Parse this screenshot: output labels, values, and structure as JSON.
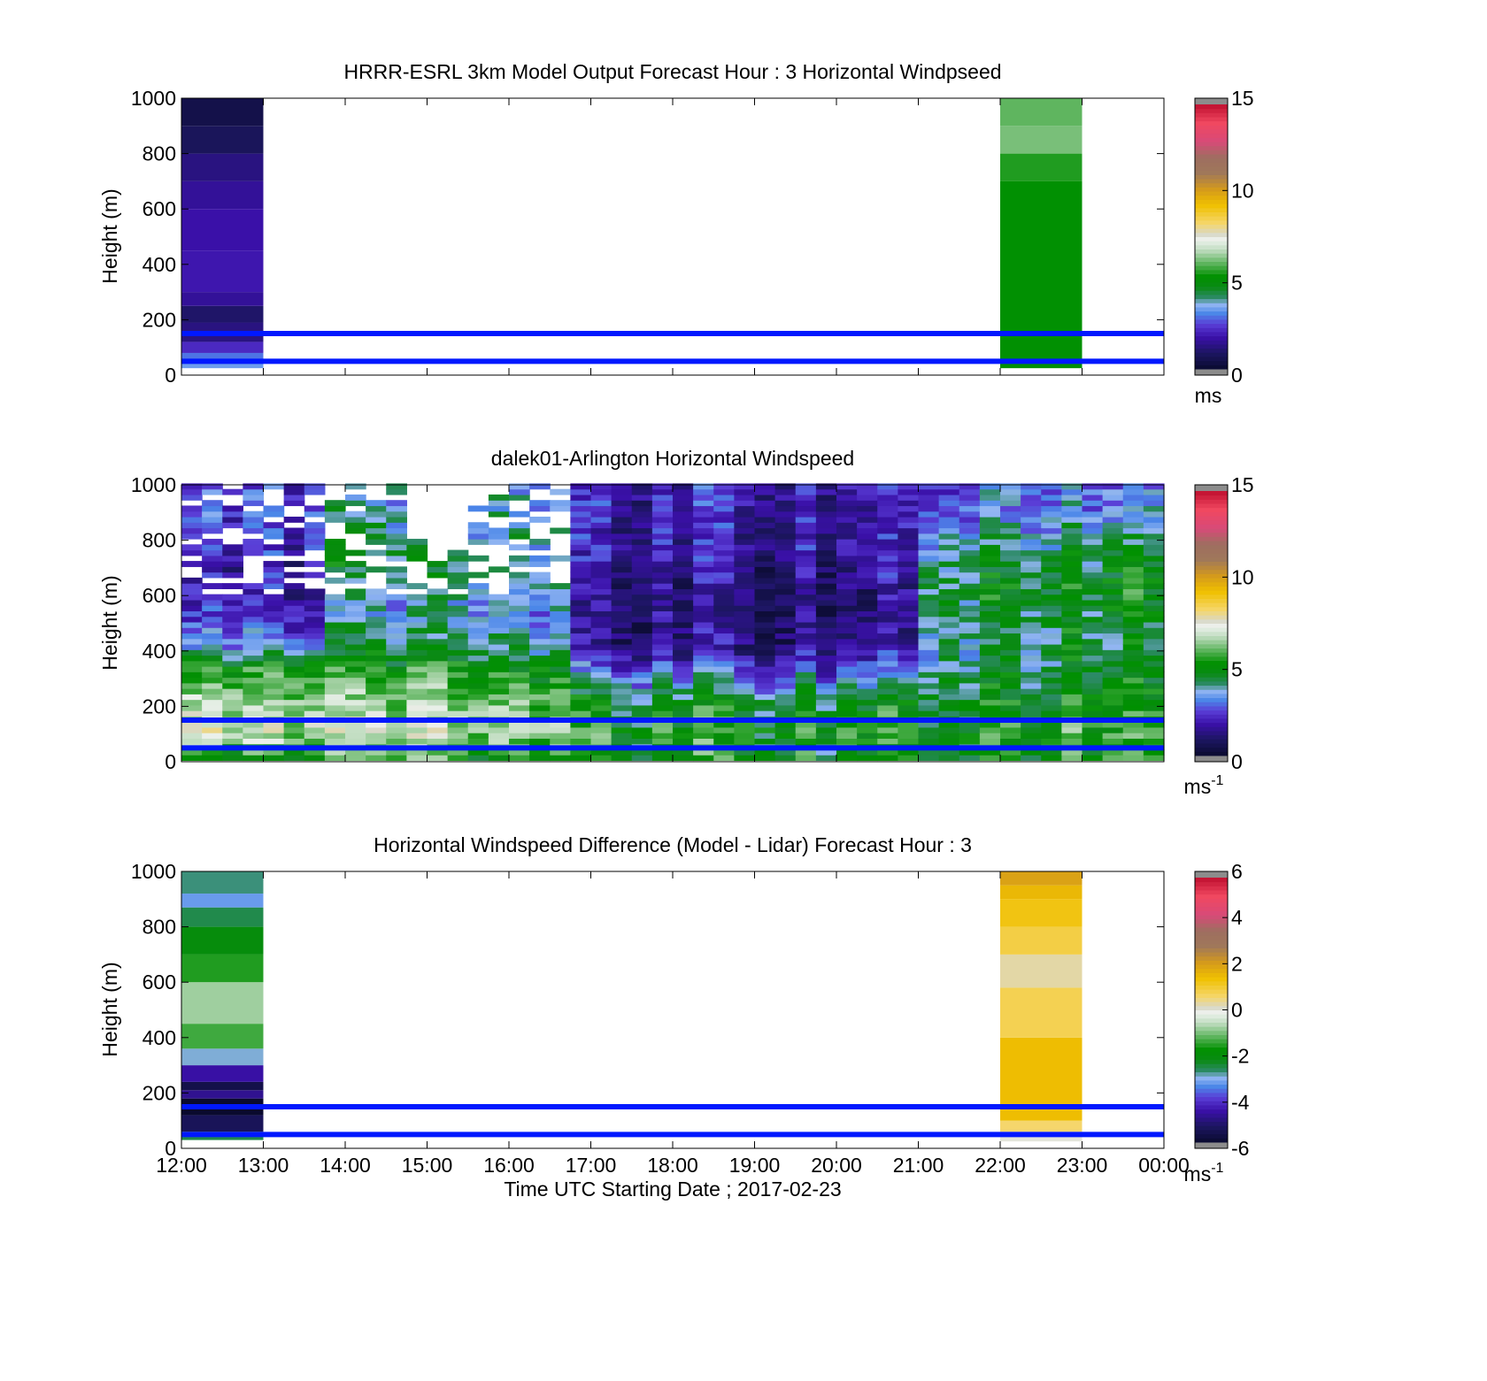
{
  "figure": {
    "xlabel": "Time UTC  Starting Date ; 2017-02-23",
    "x_ticks": [
      "12:00",
      "13:00",
      "14:00",
      "15:00",
      "16:00",
      "17:00",
      "18:00",
      "19:00",
      "20:00",
      "21:00",
      "22:00",
      "23:00",
      "00:00"
    ],
    "ylabel": "Height (m)",
    "y_ticks": [
      "0",
      "200",
      "400",
      "600",
      "800",
      "1000"
    ],
    "overlay_line_color": "#0018ff",
    "overlay_line_heights": [
      150,
      50
    ]
  },
  "chart_data": [
    {
      "type": "heatmap",
      "title": "HRRR-ESRL 3km Model Output   Forecast Hour : 3 Horizontal Windpseed",
      "xlabel": "Time UTC  Starting Date ; 2017-02-23",
      "ylabel": "Height (m)",
      "xlim": [
        "12:00",
        "00:00"
      ],
      "ylim": [
        0,
        1000
      ],
      "colorbar": {
        "ticks": [
          "0",
          "5",
          "10",
          "15"
        ],
        "range": [
          0,
          15
        ],
        "unit": "ms",
        "unit_sup": ""
      },
      "columns": [
        {
          "start": "12:00",
          "end": "13:00",
          "cells": [
            {
              "y0": 25,
              "y1": 45,
              "v": 3.4
            },
            {
              "y0": 45,
              "y1": 80,
              "v": 3.0
            },
            {
              "y0": 80,
              "y1": 120,
              "v": 2.2
            },
            {
              "y0": 120,
              "y1": 190,
              "v": 1.3
            },
            {
              "y0": 190,
              "y1": 250,
              "v": 1.0
            },
            {
              "y0": 250,
              "y1": 300,
              "v": 1.6
            },
            {
              "y0": 300,
              "y1": 450,
              "v": 1.9
            },
            {
              "y0": 450,
              "y1": 600,
              "v": 1.8
            },
            {
              "y0": 600,
              "y1": 700,
              "v": 1.6
            },
            {
              "y0": 700,
              "y1": 800,
              "v": 1.3
            },
            {
              "y0": 800,
              "y1": 900,
              "v": 0.8
            },
            {
              "y0": 900,
              "y1": 1000,
              "v": 0.5
            }
          ]
        },
        {
          "start": "22:00",
          "end": "23:00",
          "cells": [
            {
              "y0": 25,
              "y1": 700,
              "v": 5.2
            },
            {
              "y0": 700,
              "y1": 800,
              "v": 5.5
            },
            {
              "y0": 800,
              "y1": 900,
              "v": 6.2
            },
            {
              "y0": 900,
              "y1": 1000,
              "v": 6.0
            }
          ]
        }
      ],
      "reference_lines_m": [
        150,
        50
      ]
    },
    {
      "type": "heatmap",
      "title": "dalek01-Arlington  Horizontal Windspeed",
      "xlabel": "Time UTC  Starting Date ; 2017-02-23",
      "ylabel": "Height (m)",
      "xlim": [
        "12:00",
        "00:00"
      ],
      "ylim": [
        0,
        1000
      ],
      "colorbar": {
        "ticks": [
          "0",
          "5",
          "10",
          "15"
        ],
        "range": [
          0,
          15
        ],
        "unit": "ms",
        "unit_sup": "-1"
      },
      "time_bin_minutes": 15,
      "height_bin_m": 20,
      "data_top_m": [
        1000,
        1000,
        1000,
        1000,
        1000,
        1000,
        1000,
        980,
        1000,
        1000,
        1000,
        880,
        740,
        760,
        920,
        980,
        1000,
        1000,
        1000,
        1000,
        1000,
        1000,
        1000,
        1000,
        1000,
        1000,
        1000,
        1000,
        1000,
        1000,
        1000,
        1000,
        1000,
        1000,
        1000,
        1000,
        1000,
        1000,
        1000,
        1000,
        1000,
        1000,
        1000,
        1000,
        1000,
        1000,
        1000,
        1000
      ],
      "regime_profiles": {
        "early": {
          "heights": [
            0,
            100,
            200,
            300,
            400,
            500,
            600,
            700,
            800,
            900,
            1000
          ],
          "values": [
            5.2,
            7.0,
            6.6,
            5.8,
            3.6,
            2.4,
            1.9,
            2.0,
            2.4,
            2.6,
            2.5
          ]
        },
        "midday": {
          "heights": [
            0,
            100,
            200,
            300,
            400,
            500,
            600,
            700,
            800,
            900,
            1000
          ],
          "values": [
            5.3,
            6.6,
            6.2,
            5.4,
            4.2,
            3.4,
            3.6,
            4.2,
            4.0,
            3.6,
            3.6
          ]
        },
        "afternoon": {
          "heights": [
            0,
            100,
            200,
            300,
            400,
            500,
            600,
            700,
            800,
            900,
            1000
          ],
          "values": [
            5.0,
            5.4,
            4.8,
            3.2,
            1.6,
            1.2,
            1.3,
            1.6,
            1.8,
            2.0,
            2.0
          ]
        },
        "evening": {
          "heights": [
            0,
            100,
            200,
            300,
            400,
            500,
            600,
            700,
            800,
            900,
            1000
          ],
          "values": [
            5.2,
            5.3,
            5.0,
            4.6,
            4.2,
            4.4,
            4.8,
            4.4,
            3.8,
            3.2,
            2.8
          ]
        }
      },
      "regime_start_times": {
        "early": "12:00",
        "midday": "13:45",
        "afternoon": "16:45",
        "evening": "21:00"
      },
      "reference_lines_m": [
        150,
        50
      ]
    },
    {
      "type": "heatmap",
      "title": "Horizontal Windspeed Difference (Model - Lidar) Forecast Hour : 3",
      "xlabel": "Time UTC  Starting Date ; 2017-02-23",
      "ylabel": "Height (m)",
      "xlim": [
        "12:00",
        "00:00"
      ],
      "ylim": [
        0,
        1000
      ],
      "colorbar": {
        "ticks": [
          "-6",
          "-4",
          "-2",
          "0",
          "2",
          "4",
          "6"
        ],
        "range": [
          -6,
          6
        ],
        "unit": "ms",
        "unit_sup": "-1"
      },
      "columns": [
        {
          "start": "12:00",
          "end": "13:00",
          "cells": [
            {
              "y0": 30,
              "y1": 60,
              "v": -2.6
            },
            {
              "y0": 60,
              "y1": 120,
              "v": -5.4
            },
            {
              "y0": 120,
              "y1": 180,
              "v": -6.0
            },
            {
              "y0": 180,
              "y1": 210,
              "v": -4.8
            },
            {
              "y0": 210,
              "y1": 240,
              "v": -5.6
            },
            {
              "y0": 240,
              "y1": 300,
              "v": -4.6
            },
            {
              "y0": 300,
              "y1": 360,
              "v": -3.0
            },
            {
              "y0": 360,
              "y1": 450,
              "v": -1.4
            },
            {
              "y0": 450,
              "y1": 600,
              "v": -0.8
            },
            {
              "y0": 600,
              "y1": 700,
              "v": -1.6
            },
            {
              "y0": 700,
              "y1": 800,
              "v": -2.1
            },
            {
              "y0": 800,
              "y1": 870,
              "v": -2.6
            },
            {
              "y0": 870,
              "y1": 920,
              "v": -3.3
            },
            {
              "y0": 920,
              "y1": 1000,
              "v": -2.8
            }
          ]
        },
        {
          "start": "22:00",
          "end": "23:00",
          "cells": [
            {
              "y0": 25,
              "y1": 60,
              "v": 0.0
            },
            {
              "y0": 60,
              "y1": 100,
              "v": 0.6
            },
            {
              "y0": 100,
              "y1": 400,
              "v": 1.5
            },
            {
              "y0": 400,
              "y1": 580,
              "v": 0.8
            },
            {
              "y0": 580,
              "y1": 700,
              "v": 0.3
            },
            {
              "y0": 700,
              "y1": 800,
              "v": 0.9
            },
            {
              "y0": 800,
              "y1": 900,
              "v": 1.3
            },
            {
              "y0": 900,
              "y1": 950,
              "v": 1.6
            },
            {
              "y0": 950,
              "y1": 1000,
              "v": 2.0
            }
          ]
        }
      ],
      "reference_lines_m": [
        150,
        50
      ]
    }
  ]
}
